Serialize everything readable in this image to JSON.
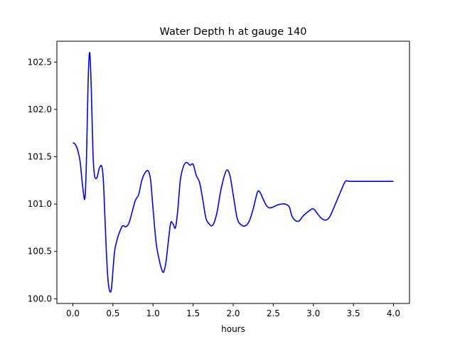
{
  "chart_data": {
    "type": "line",
    "title": "Water Depth h at gauge 140",
    "xlabel": "hours",
    "ylabel": "",
    "xlim": [
      -0.2,
      4.2
    ],
    "ylim": [
      99.95,
      102.72
    ],
    "xticks": [
      0.0,
      0.5,
      1.0,
      1.5,
      2.0,
      2.5,
      3.0,
      3.5,
      4.0
    ],
    "xtick_labels": [
      "0.0",
      "0.5",
      "1.0",
      "1.5",
      "2.0",
      "2.5",
      "3.0",
      "3.5",
      "4.0"
    ],
    "yticks": [
      100.0,
      100.5,
      101.0,
      101.5,
      102.0,
      102.5
    ],
    "ytick_labels": [
      "100.0",
      "100.5",
      "101.0",
      "101.5",
      "102.0",
      "102.5"
    ],
    "grid": false,
    "legend": "none",
    "series": [
      {
        "color": "#0000ff",
        "x": [
          0.0,
          0.03,
          0.06,
          0.09,
          0.12,
          0.15,
          0.17,
          0.19,
          0.21,
          0.23,
          0.25,
          0.27,
          0.3,
          0.33,
          0.36,
          0.38,
          0.4,
          0.42,
          0.44,
          0.46,
          0.48,
          0.5,
          0.52,
          0.55,
          0.58,
          0.62,
          0.66,
          0.7,
          0.74,
          0.78,
          0.82,
          0.86,
          0.9,
          0.94,
          0.97,
          1.0,
          1.04,
          1.08,
          1.1,
          1.13,
          1.16,
          1.19,
          1.22,
          1.25,
          1.28,
          1.31,
          1.34,
          1.38,
          1.42,
          1.46,
          1.5,
          1.54,
          1.58,
          1.62,
          1.66,
          1.7,
          1.73,
          1.76,
          1.8,
          1.84,
          1.88,
          1.92,
          1.96,
          2.0,
          2.05,
          2.1,
          2.15,
          2.2,
          2.25,
          2.3,
          2.33,
          2.37,
          2.41,
          2.45,
          2.5,
          2.55,
          2.6,
          2.65,
          2.7,
          2.73,
          2.77,
          2.82,
          2.88,
          2.95,
          3.0,
          3.05,
          3.1,
          3.15,
          3.2,
          3.25,
          3.3,
          3.35,
          3.4,
          3.45,
          3.5,
          3.55,
          3.6,
          3.65,
          3.7,
          3.75,
          3.8,
          3.85,
          3.9,
          3.95,
          4.0
        ],
        "y": [
          101.65,
          101.63,
          101.57,
          101.45,
          101.2,
          101.06,
          101.5,
          102.3,
          102.6,
          102.2,
          101.55,
          101.3,
          101.28,
          101.38,
          101.4,
          101.25,
          100.85,
          100.45,
          100.18,
          100.08,
          100.1,
          100.3,
          100.5,
          100.62,
          100.7,
          100.77,
          100.76,
          100.8,
          100.92,
          101.04,
          101.1,
          101.25,
          101.33,
          101.35,
          101.25,
          100.95,
          100.58,
          100.4,
          100.33,
          100.28,
          100.38,
          100.6,
          100.8,
          100.79,
          100.75,
          100.95,
          101.25,
          101.4,
          101.44,
          101.41,
          101.42,
          101.3,
          101.23,
          101.05,
          100.85,
          100.79,
          100.77,
          100.8,
          100.92,
          101.12,
          101.27,
          101.36,
          101.3,
          101.1,
          100.85,
          100.78,
          100.77,
          100.82,
          100.95,
          101.12,
          101.13,
          101.06,
          100.99,
          100.96,
          100.97,
          100.99,
          101.0,
          101.0,
          100.97,
          100.88,
          100.83,
          100.82,
          100.88,
          100.93,
          100.95,
          100.9,
          100.85,
          100.83,
          100.86,
          100.95,
          101.05,
          101.15,
          101.24,
          101.24,
          101.24,
          101.24,
          101.24,
          101.24,
          101.24,
          101.24,
          101.24,
          101.24,
          101.24,
          101.24,
          101.24
        ]
      }
    ]
  }
}
